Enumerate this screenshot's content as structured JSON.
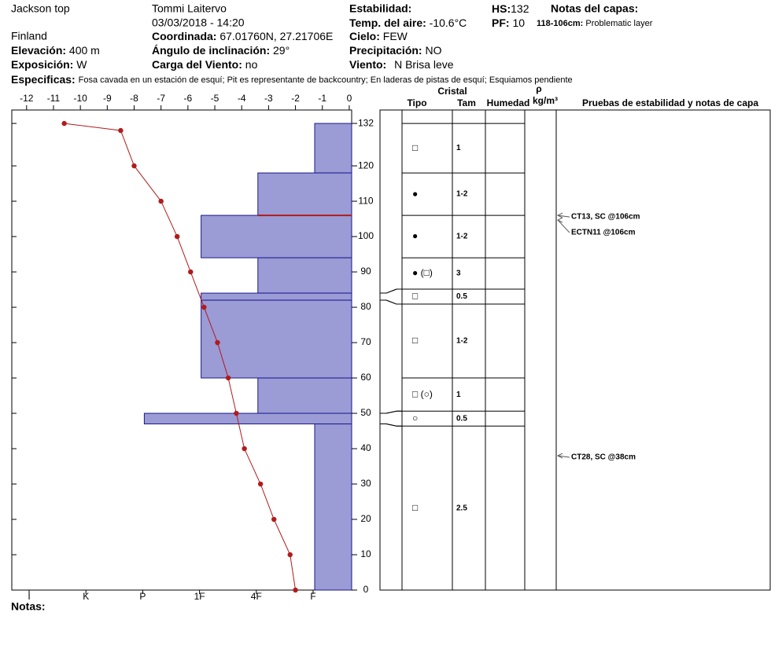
{
  "header": {
    "site": "Jackson top",
    "observer": "Tommi Laitervo",
    "datetime": "03/03/2018 - 14:20",
    "location": "Finland",
    "elevation_label": "Elevación:",
    "elevation": "400 m",
    "aspect_label": "Exposición:",
    "aspect": "W",
    "coords_label": "Coordinada:",
    "coords": "67.01760N, 27.21706E",
    "slope_label": "Ángulo de inclinación:",
    "slope": "29°",
    "wind_load_label": "Carga del Viento:",
    "wind_load": "no",
    "stability_label": "Estabilidad:",
    "air_temp_label": "Temp. del aire:",
    "air_temp": "-10.6°C",
    "sky_label": "Cielo:",
    "sky": "FEW",
    "precip_label": "Precipitación:",
    "precip": "NO",
    "wind_label": "Viento:",
    "wind": "N Brisa leve",
    "hs_label": "HS:",
    "hs": "132",
    "pf_label": "PF:",
    "pf": "10",
    "layer_notes_label": "Notas del capas:",
    "layer_note_range": "118-106cm:",
    "layer_note_text": "Problematic layer",
    "specifics_label": "Especificas:",
    "specifics": "Fosa cavada en un estación de esquí; Pit es representante de backcountry; En laderas de pistas de esquí; Esquiamos pendiente",
    "notes_label": "Notas:"
  },
  "columns": {
    "crystal": "Cristal",
    "type": "Tipo",
    "size": "Tam",
    "moisture": "Humedad",
    "rho": "ρ",
    "density_unit": "kg/m³",
    "tests": "Pruebas de estabilidad y notas de capa"
  },
  "chart_data": {
    "type": "snowprofile",
    "ylim": [
      0,
      135.8
    ],
    "yticks": [
      0,
      10,
      20,
      30,
      40,
      50,
      60,
      70,
      80,
      90,
      100,
      110,
      120,
      132
    ],
    "xlim": [
      -12.55,
      0.09
    ],
    "xticks": [
      -12,
      -11,
      -10,
      -9,
      -8,
      -7,
      -6,
      -5,
      -4,
      -3,
      -2,
      -1,
      0
    ],
    "hardness_ticks": [
      "I",
      "K",
      "P",
      "1F",
      "4F",
      "F"
    ],
    "temperature": {
      "color": "#b01c1c",
      "heights": [
        132,
        130,
        120,
        110,
        100,
        90,
        80,
        70,
        60,
        50,
        40,
        30,
        20,
        10,
        0
      ],
      "values": [
        -10.6,
        -8.5,
        -8.0,
        -7.0,
        -6.4,
        -5.9,
        -5.4,
        -4.9,
        -4.5,
        -4.2,
        -3.9,
        -3.3,
        -2.8,
        -2.2,
        -2.0
      ]
    },
    "bar_color": "#9b9bd6",
    "layers": [
      {
        "top": 132,
        "bottom": 118,
        "hardness": "F",
        "grain": "□",
        "size": "1"
      },
      {
        "top": 118,
        "bottom": 106,
        "hardness": "4F",
        "grain": "●",
        "size": "1-2"
      },
      {
        "top": 106,
        "bottom": 94,
        "hardness": "1F",
        "grain": "●",
        "size": "1-2"
      },
      {
        "top": 94,
        "bottom": 84,
        "hardness": "4F",
        "grain": "● (□)",
        "size": "3"
      },
      {
        "top": 84,
        "bottom": 82,
        "hardness": "1F",
        "grain": "□",
        "size": "0.5"
      },
      {
        "top": 82,
        "bottom": 60,
        "hardness": "1F",
        "grain": "□",
        "size": "1-2"
      },
      {
        "top": 60,
        "bottom": 50,
        "hardness": "4F",
        "grain": "□ (○)",
        "size": "1"
      },
      {
        "top": 50,
        "bottom": 47,
        "hardness": "P",
        "grain": "○",
        "size": "0.5"
      },
      {
        "top": 47,
        "bottom": 0,
        "hardness": "F",
        "grain": "□",
        "size": "2.5"
      }
    ],
    "tests": [
      {
        "label": "CT13, SC @106cm",
        "height": 106
      },
      {
        "label": "ECTN11 @106cm",
        "height": 106
      },
      {
        "label": "CT28, SC @38cm",
        "height": 38
      }
    ]
  }
}
